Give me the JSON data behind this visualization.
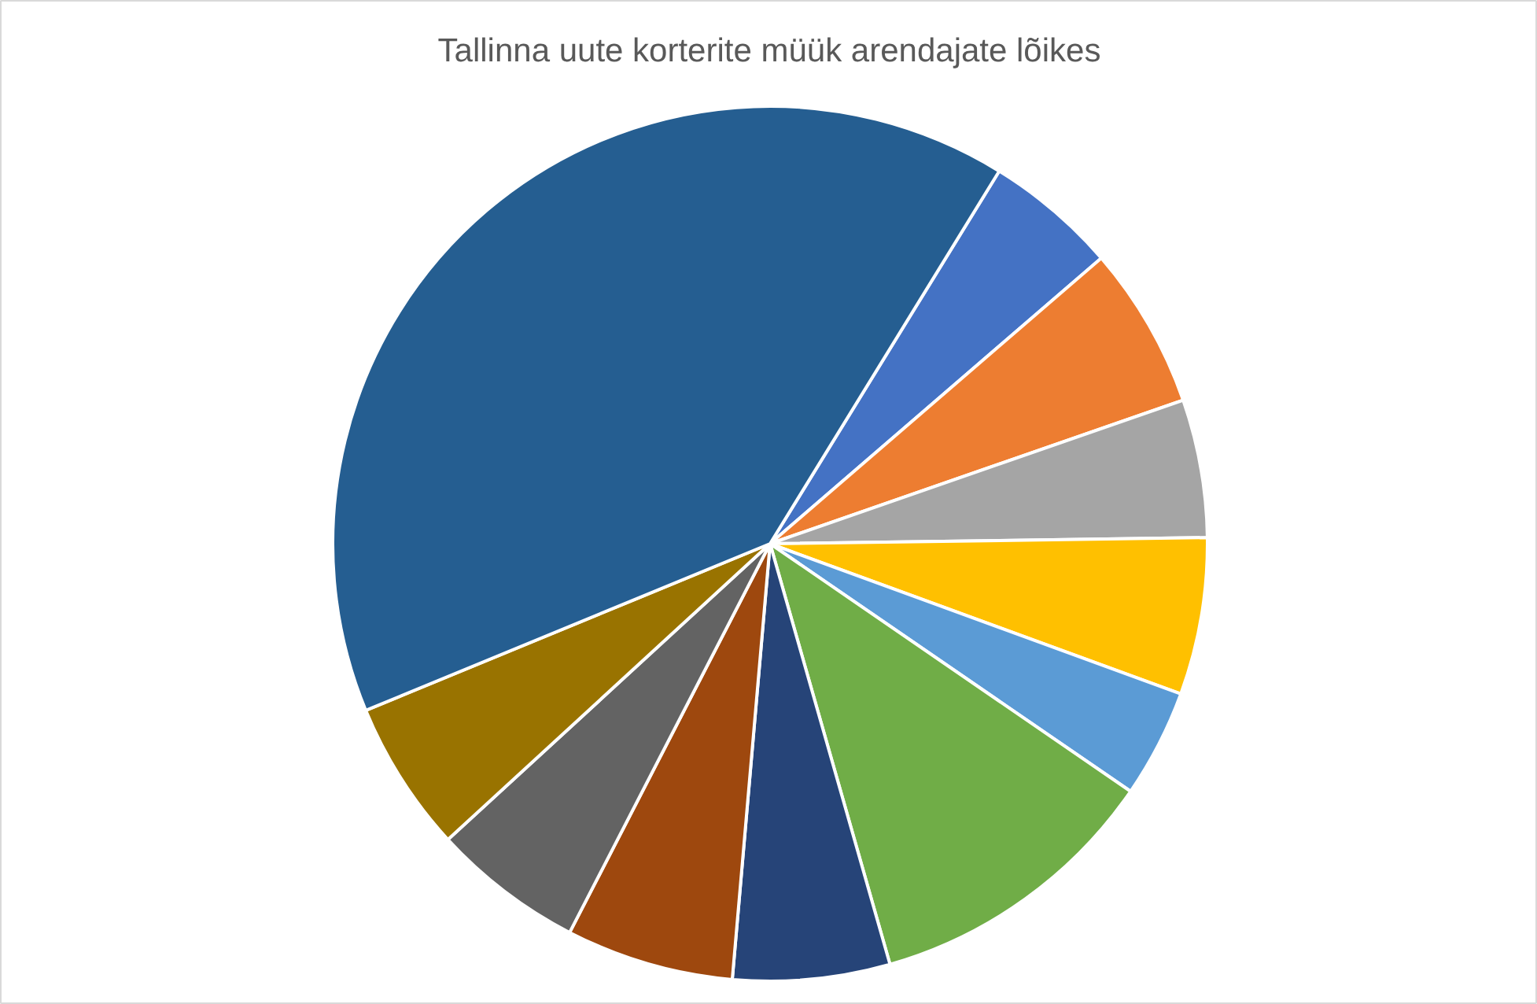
{
  "chart_data": {
    "type": "pie",
    "title": "Tallinna uute korterite müük arendajate lõikes",
    "categories": [
      null,
      null,
      null,
      null,
      null,
      null,
      null,
      null,
      null,
      null,
      null
    ],
    "values": [
      4.9,
      6.0,
      5.1,
      5.8,
      4.0,
      11.0,
      5.8,
      6.2,
      5.6,
      5.6,
      40.0
    ],
    "colors": [
      "#4472c4",
      "#ed7d31",
      "#a5a5a5",
      "#ffc000",
      "#5b9bd5",
      "#70ad47",
      "#264478",
      "#9e480e",
      "#636363",
      "#997300",
      "#255e91"
    ]
  }
}
